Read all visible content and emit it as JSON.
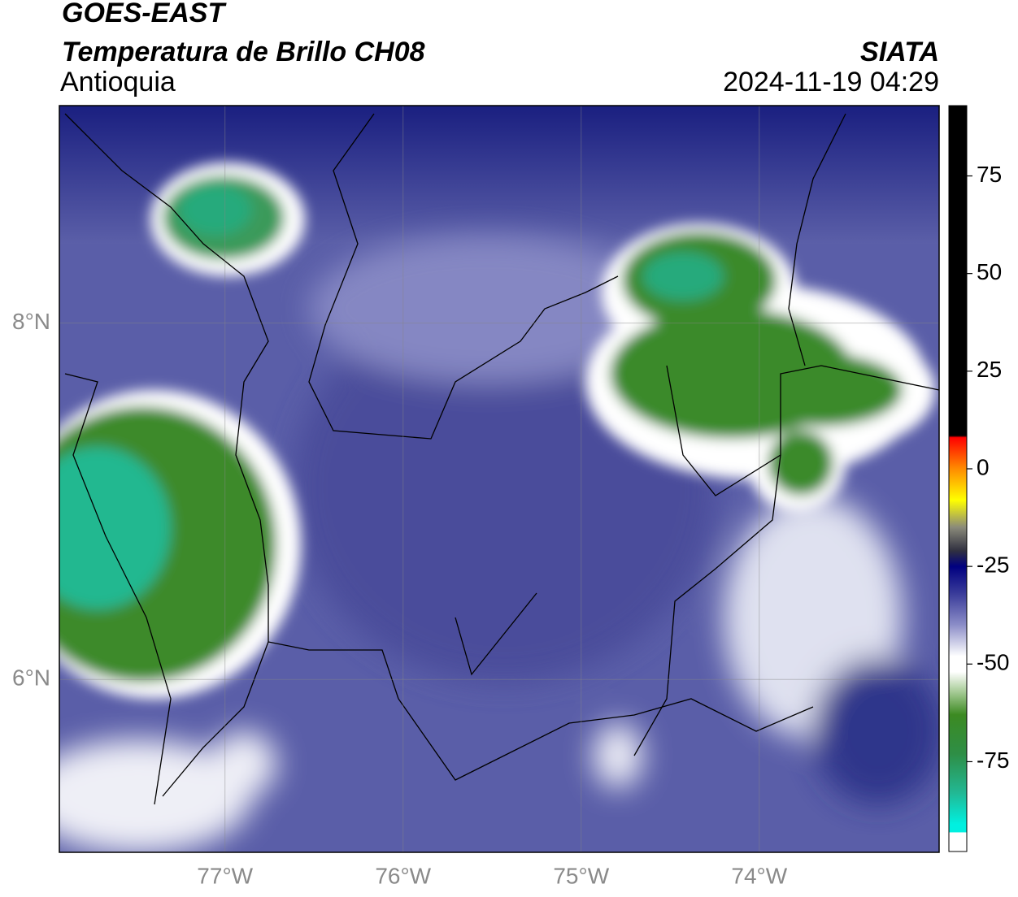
{
  "header": {
    "title": "GOES-EAST",
    "subtitle": "Temperatura de Brillo CH08",
    "region": "Antioquia",
    "source": "SIATA",
    "timestamp": "2024-11-19 04:29"
  },
  "map": {
    "xlim": [
      -77.93,
      -72.99
    ],
    "ylim": [
      5.03,
      9.22
    ],
    "xticks": [
      {
        "value": -77,
        "label": "77°W"
      },
      {
        "value": -76,
        "label": "76°W"
      },
      {
        "value": -75,
        "label": "75°W"
      },
      {
        "value": -74,
        "label": "74°W"
      }
    ],
    "yticks": [
      {
        "value": 6,
        "label": "6°N"
      },
      {
        "value": 8,
        "label": "8°N"
      }
    ],
    "grid": true
  },
  "colorbar": {
    "lim": [
      -98,
      93
    ],
    "ticks": [
      -75,
      -50,
      -25,
      0,
      25,
      50,
      75
    ],
    "stops": [
      {
        "value": 93,
        "color": "#000000"
      },
      {
        "value": 8.5,
        "color": "#000000"
      },
      {
        "value": 8,
        "color": "#ff0000"
      },
      {
        "value": 0,
        "color": "#ff8c00"
      },
      {
        "value": -8,
        "color": "#ffff00"
      },
      {
        "value": -15,
        "color": "#8a8a7a"
      },
      {
        "value": -21,
        "color": "#303040"
      },
      {
        "value": -25,
        "color": "#000080"
      },
      {
        "value": -32,
        "color": "#3a3c9a"
      },
      {
        "value": -40,
        "color": "#8c8ec8"
      },
      {
        "value": -48,
        "color": "#ffffff"
      },
      {
        "value": -52,
        "color": "#ffffff"
      },
      {
        "value": -57,
        "color": "#a8cc98"
      },
      {
        "value": -63,
        "color": "#3c8a22"
      },
      {
        "value": -73,
        "color": "#2e8e46"
      },
      {
        "value": -83,
        "color": "#22b894"
      },
      {
        "value": -91,
        "color": "#00f0e0"
      },
      {
        "value": -93,
        "color": "#00f0e0"
      },
      {
        "value": -93.2,
        "color": "#ffffff"
      },
      {
        "value": -98,
        "color": "#ffffff"
      }
    ]
  }
}
